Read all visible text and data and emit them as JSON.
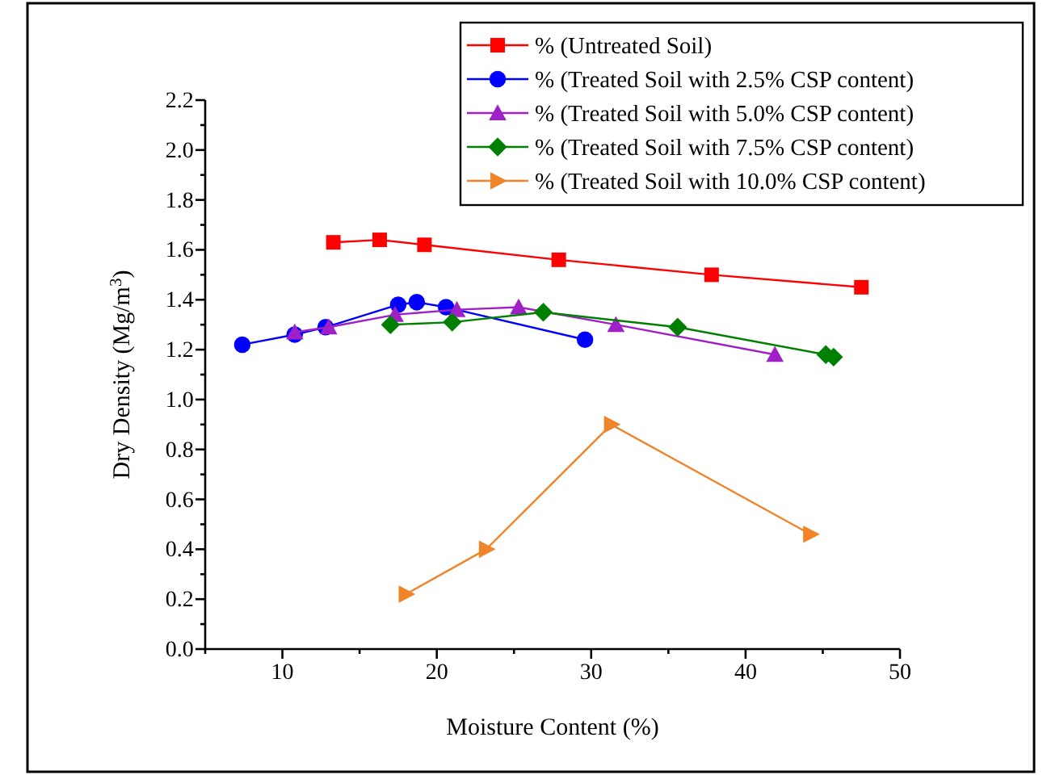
{
  "chart_data": {
    "type": "line",
    "xlabel": "Moisture Content (%)",
    "ylabel": "Dry Density (Mg/m$^{3}$)",
    "xlim": [
      5,
      50
    ],
    "xticks": [
      {
        "value": 5,
        "label": null
      },
      10,
      {
        "value": 15,
        "label": null
      },
      20,
      {
        "value": 25,
        "label": null
      },
      30,
      {
        "value": 35,
        "label": null
      },
      40,
      {
        "value": 45,
        "label": null
      },
      50
    ],
    "ylim": [
      0,
      2.2
    ],
    "yticks": [
      {
        "value": 0,
        "label": "0.0"
      },
      {
        "value": 0.1,
        "label": null
      },
      {
        "value": 0.2,
        "label": "0.2"
      },
      {
        "value": 0.3,
        "label": null
      },
      {
        "value": 0.4,
        "label": "0.4"
      },
      {
        "value": 0.5,
        "label": null
      },
      {
        "value": 0.6,
        "label": "0.6"
      },
      {
        "value": 0.7,
        "label": null
      },
      {
        "value": 0.8,
        "label": "0.8"
      },
      {
        "value": 0.9,
        "label": null
      },
      {
        "value": 1,
        "label": "1.0"
      },
      {
        "value": 1.1,
        "label": null
      },
      {
        "value": 1.2,
        "label": "1.2"
      },
      {
        "value": 1.3,
        "label": null
      },
      {
        "value": 1.4,
        "label": "1.4"
      },
      {
        "value": 1.5,
        "label": null
      },
      {
        "value": 1.6,
        "label": "1.6"
      },
      {
        "value": 1.7,
        "label": null
      },
      {
        "value": 1.8,
        "label": "1.8"
      },
      {
        "value": 1.9,
        "label": null
      },
      {
        "value": 2,
        "label": "2.0"
      },
      {
        "value": 2.1,
        "label": null
      },
      {
        "value": 2.2,
        "label": "2.2"
      }
    ],
    "grid": false,
    "legend": "top right",
    "line_style": "solid",
    "series": [
      {
        "name": "% (Untreated Soil)",
        "color": "#ff0000",
        "marker": "square",
        "x": [
          13.3,
          16.3,
          19.2,
          27.9,
          37.8,
          47.5
        ],
        "values": [
          1.63,
          1.64,
          1.62,
          1.56,
          1.5,
          1.45
        ]
      },
      {
        "name": "% (Treated Soil with 2.5% CSP content)",
        "color": "#0000ff",
        "marker": "circle",
        "x": [
          7.4,
          10.8,
          12.8,
          17.5,
          18.7,
          20.6,
          29.6
        ],
        "values": [
          1.22,
          1.26,
          1.29,
          1.38,
          1.39,
          1.37,
          1.24
        ]
      },
      {
        "name": "% (Treated Soil with 5.0% CSP content)",
        "color": "#a020c8",
        "marker": "triangle",
        "x": [
          10.8,
          13.0,
          17.3,
          21.3,
          25.3,
          31.6,
          41.9
        ],
        "values": [
          1.27,
          1.29,
          1.34,
          1.36,
          1.37,
          1.3,
          1.18
        ]
      },
      {
        "name": "% (Treated Soil with 7.5% CSP content)",
        "color": "#008000",
        "marker": "diamond",
        "x": [
          17.0,
          21.0,
          26.9,
          35.6,
          45.2,
          45.7
        ],
        "values": [
          1.3,
          1.31,
          1.35,
          1.29,
          1.18,
          1.17
        ]
      },
      {
        "name": "% (Treated Soil with 10.0% CSP content)",
        "color": "#f08428",
        "marker": "triangle-right",
        "x": [
          18.0,
          23.2,
          31.3,
          44.2
        ],
        "values": [
          0.22,
          0.4,
          0.9,
          0.46
        ]
      }
    ]
  }
}
